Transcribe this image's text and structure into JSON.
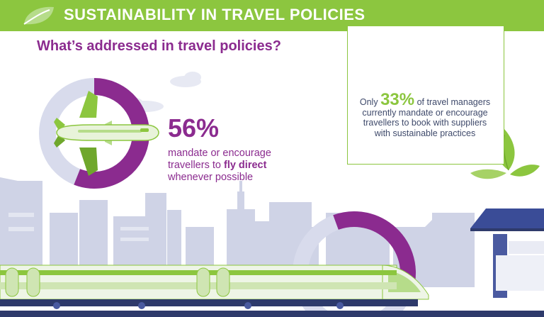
{
  "banner": {
    "title": "SUSTAINABILITY IN TRAVEL POLICIES"
  },
  "subtitle": "What’s addressed in travel policies?",
  "fly_direct": {
    "percent_label": "56%",
    "percent_value": 56,
    "desc_before": "mandate or encourage travellers to ",
    "desc_bold": "fly direct",
    "desc_after": " whenever possible"
  },
  "suppliers": {
    "prefix": "Only ",
    "percent_label": "33%",
    "percent_value": 33,
    "suffix": " of travel managers currently mandate or encourage travellers to book with suppliers with sustainable practices"
  },
  "colors": {
    "green": "#8cc63f",
    "purple": "#8b2b8f",
    "lavender": "#d8dbec",
    "navy": "#2e3a6b"
  }
}
